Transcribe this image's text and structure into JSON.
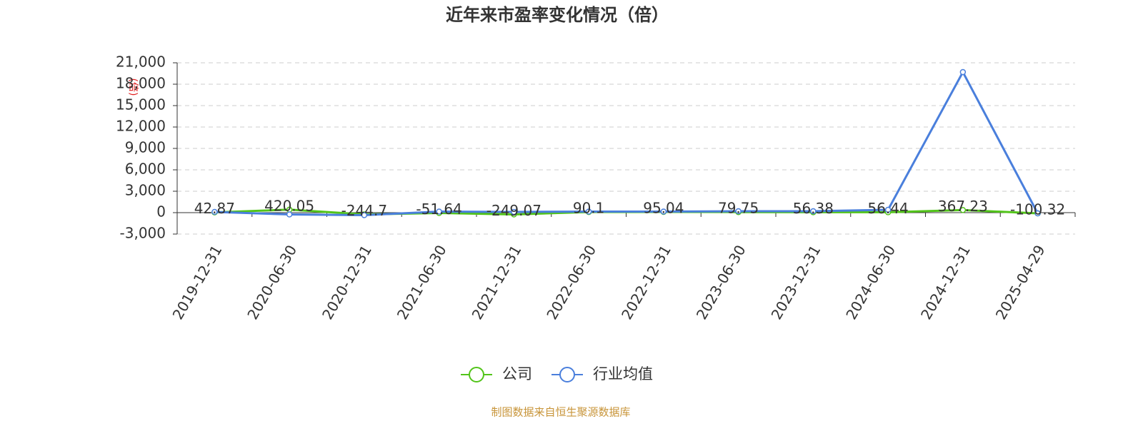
{
  "chart_data": {
    "type": "line",
    "title": "近年来市盈率变化情况（倍）",
    "y_label": "(倍)",
    "categories": [
      "2019-12-31",
      "2020-06-30",
      "2020-12-31",
      "2021-06-30",
      "2021-12-31",
      "2022-06-30",
      "2022-12-31",
      "2023-06-30",
      "2023-12-31",
      "2024-06-30",
      "2024-12-31",
      "2025-04-29"
    ],
    "series": [
      {
        "name": "公司",
        "color": "#52c41a",
        "values": [
          42.87,
          420.05,
          -244.7,
          -51.64,
          -249.07,
          90.1,
          95.04,
          79.75,
          56.38,
          56.44,
          367.23,
          -100.32
        ]
      },
      {
        "name": "行业均值",
        "color": "#4a7fdc",
        "values": [
          100,
          -250,
          -350,
          150,
          100,
          150,
          150,
          200,
          200,
          400,
          19700,
          -100
        ]
      }
    ],
    "ylim": [
      -3000,
      21000
    ],
    "yticks": [
      {
        "value": -3000,
        "label": "-3,000"
      },
      0,
      {
        "value": 3000,
        "label": "3,000"
      },
      {
        "value": 6000,
        "label": "6,000"
      },
      {
        "value": 9000,
        "label": "9,000"
      },
      {
        "value": 12000,
        "label": "12,000"
      },
      {
        "value": 15000,
        "label": "15,000"
      },
      {
        "value": 18000,
        "label": "18,000"
      },
      {
        "value": 21000,
        "label": "21,000"
      }
    ],
    "grid": true,
    "source": "制图数据来自恒生聚源数据库"
  }
}
